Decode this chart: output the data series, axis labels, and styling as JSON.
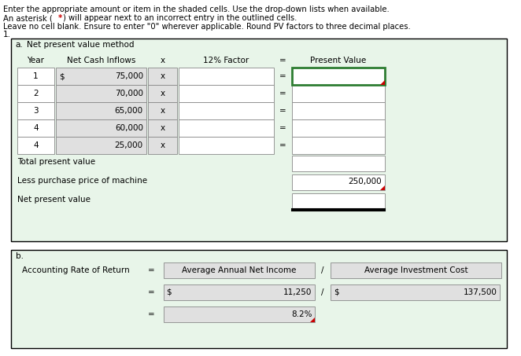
{
  "instructions": [
    "Enter the appropriate amount or item in the shaded cells. Use the drop-down lists when available.",
    "An asterisk (*) will appear next to an incorrect entry in the outlined cells.",
    "Leave no cell blank. Ensure to enter \"0\" wherever applicable. Round PV factors to three decimal places."
  ],
  "section_a_title": "Net present value method",
  "section_label_a": "a.",
  "section_label_1": "1.",
  "section_label_b": "b.",
  "table_headers": [
    "Year",
    "Net Cash Inflows",
    "x",
    "12% Factor",
    "=",
    "Present Value"
  ],
  "rows": [
    {
      "year": "1",
      "dollar": "$",
      "cash": "75,000",
      "x": "x",
      "factor": "",
      "eq": "=",
      "pv": ""
    },
    {
      "year": "2",
      "dollar": "",
      "cash": "70,000",
      "x": "x",
      "factor": "",
      "eq": "=",
      "pv": ""
    },
    {
      "year": "3",
      "dollar": "",
      "cash": "65,000",
      "x": "x",
      "factor": "",
      "eq": "=",
      "pv": ""
    },
    {
      "year": "4",
      "dollar": "",
      "cash": "60,000",
      "x": "x",
      "factor": "",
      "eq": "=",
      "pv": ""
    },
    {
      "year": "4",
      "dollar": "",
      "cash": "25,000",
      "x": "x",
      "factor": "",
      "eq": "=",
      "pv": ""
    }
  ],
  "total_present_value_label": "Total present value",
  "less_purchase_label": "Less purchase price of machine",
  "less_purchase_value": "250,000",
  "net_present_value_label": "Net present value",
  "section_b_title": "Accounting Rate of Return",
  "b_formula_label1": "Average Annual Net Income",
  "b_formula_div": "/",
  "b_formula_label2": "Average Investment Cost",
  "b_dollar1": "$",
  "b_value1": "11,250",
  "b_dollar2": "$",
  "b_value2": "137,500",
  "b_result": "8.2%",
  "bg_light_green": "#e8f5e9",
  "bg_white": "#ffffff",
  "bg_gray": "#d3d3d3",
  "bg_light_gray": "#e0e0e0",
  "color_red": "#cc0000",
  "color_black": "#000000",
  "border_dark_green": "#2e7d32",
  "border_black": "#000000"
}
